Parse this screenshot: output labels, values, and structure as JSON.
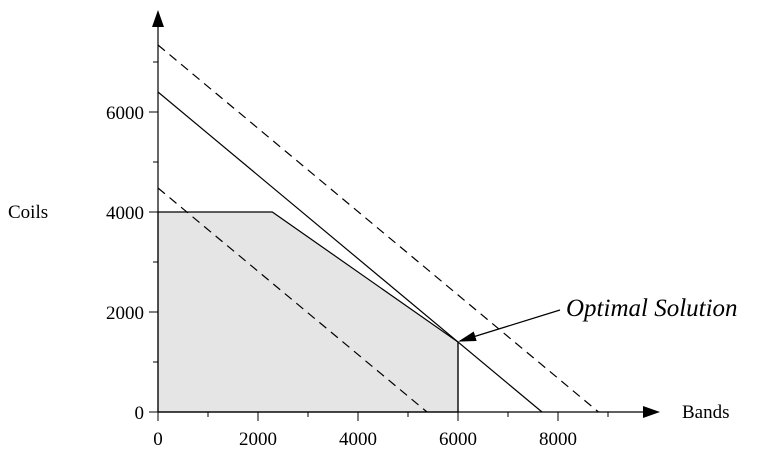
{
  "chart_data": {
    "type": "line",
    "title": "",
    "xlabel": "Bands",
    "ylabel": "Coils",
    "xlim": [
      0,
      9800
    ],
    "ylim": [
      0,
      7900
    ],
    "x_ticks": [
      0,
      2000,
      4000,
      6000,
      8000
    ],
    "y_ticks": [
      0,
      2000,
      4000,
      6000
    ],
    "x_tick_labels": [
      "0",
      "2000",
      "4000",
      "6000",
      "8000"
    ],
    "y_tick_labels": [
      "0",
      "2000",
      "4000",
      "6000"
    ],
    "feasible_region": {
      "fill": "#e5e5e5",
      "vertices": [
        [
          0,
          0
        ],
        [
          0,
          4000
        ],
        [
          2286,
          4000
        ],
        [
          6000,
          1400
        ],
        [
          6000,
          0
        ]
      ]
    },
    "series": [
      {
        "style": "solid",
        "points": [
          [
            0,
            6400
          ],
          [
            7680,
            0
          ]
        ]
      },
      {
        "style": "dashed",
        "points": [
          [
            0,
            7340
          ],
          [
            8810,
            0
          ]
        ]
      },
      {
        "style": "dashed",
        "points": [
          [
            0,
            4480
          ],
          [
            5380,
            0
          ]
        ]
      },
      {
        "style": "solid",
        "points": [
          [
            6000,
            0
          ],
          [
            6000,
            1400
          ]
        ]
      }
    ],
    "annotations": [
      {
        "text": "Optimal Solution",
        "point": [
          6000,
          1400
        ]
      }
    ]
  }
}
